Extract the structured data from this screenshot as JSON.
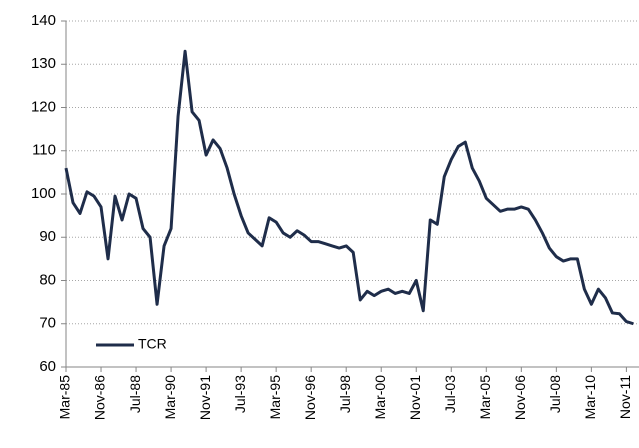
{
  "chart_data": {
    "type": "line",
    "categories": [
      "Mar-85",
      null,
      null,
      null,
      null,
      "Nov-86",
      null,
      null,
      null,
      null,
      "Jul-88",
      null,
      null,
      null,
      null,
      "Mar-90",
      null,
      null,
      null,
      null,
      "Nov-91",
      null,
      null,
      null,
      null,
      "Jul-93",
      null,
      null,
      null,
      null,
      "Mar-95",
      null,
      null,
      null,
      null,
      "Nov-96",
      null,
      null,
      null,
      null,
      "Jul-98",
      null,
      null,
      null,
      null,
      "Mar-00",
      null,
      null,
      null,
      null,
      "Nov-01",
      null,
      null,
      null,
      null,
      "Jul-03",
      null,
      null,
      null,
      null,
      "Mar-05",
      null,
      null,
      null,
      null,
      "Nov-06",
      null,
      null,
      null,
      null,
      "Jul-08",
      null,
      null,
      null,
      null,
      "Mar-10",
      null,
      null,
      null,
      null,
      "Nov-11",
      null
    ],
    "series": [
      {
        "name": "TCR",
        "color": "#1f2d4a",
        "values": [
          106,
          98,
          95.5,
          100.5,
          99.5,
          97,
          85,
          99.5,
          94,
          100,
          99,
          92,
          90,
          74.5,
          88,
          92,
          118,
          133,
          119,
          117,
          109,
          112.5,
          110.5,
          106,
          100,
          95,
          91,
          89.5,
          88,
          94.5,
          93.5,
          91,
          90,
          91.5,
          90.5,
          89,
          89,
          88.5,
          88,
          87.5,
          88,
          86.5,
          75.5,
          77.5,
          76.5,
          77.5,
          78,
          77,
          77.5,
          77,
          80,
          73,
          94,
          93,
          104,
          108,
          111,
          112,
          106,
          103,
          99,
          97.5,
          96,
          96.5,
          96.5,
          97,
          96.5,
          94,
          91,
          87.5,
          85.5,
          84.5,
          85,
          85,
          78,
          74.5,
          78,
          76,
          72.5,
          72.3,
          70.5,
          70
        ]
      }
    ],
    "ylim": [
      60,
      140
    ],
    "yticks": [
      60,
      70,
      80,
      90,
      100,
      110,
      120,
      130,
      140
    ],
    "grid": true,
    "legend": "lower-left"
  }
}
